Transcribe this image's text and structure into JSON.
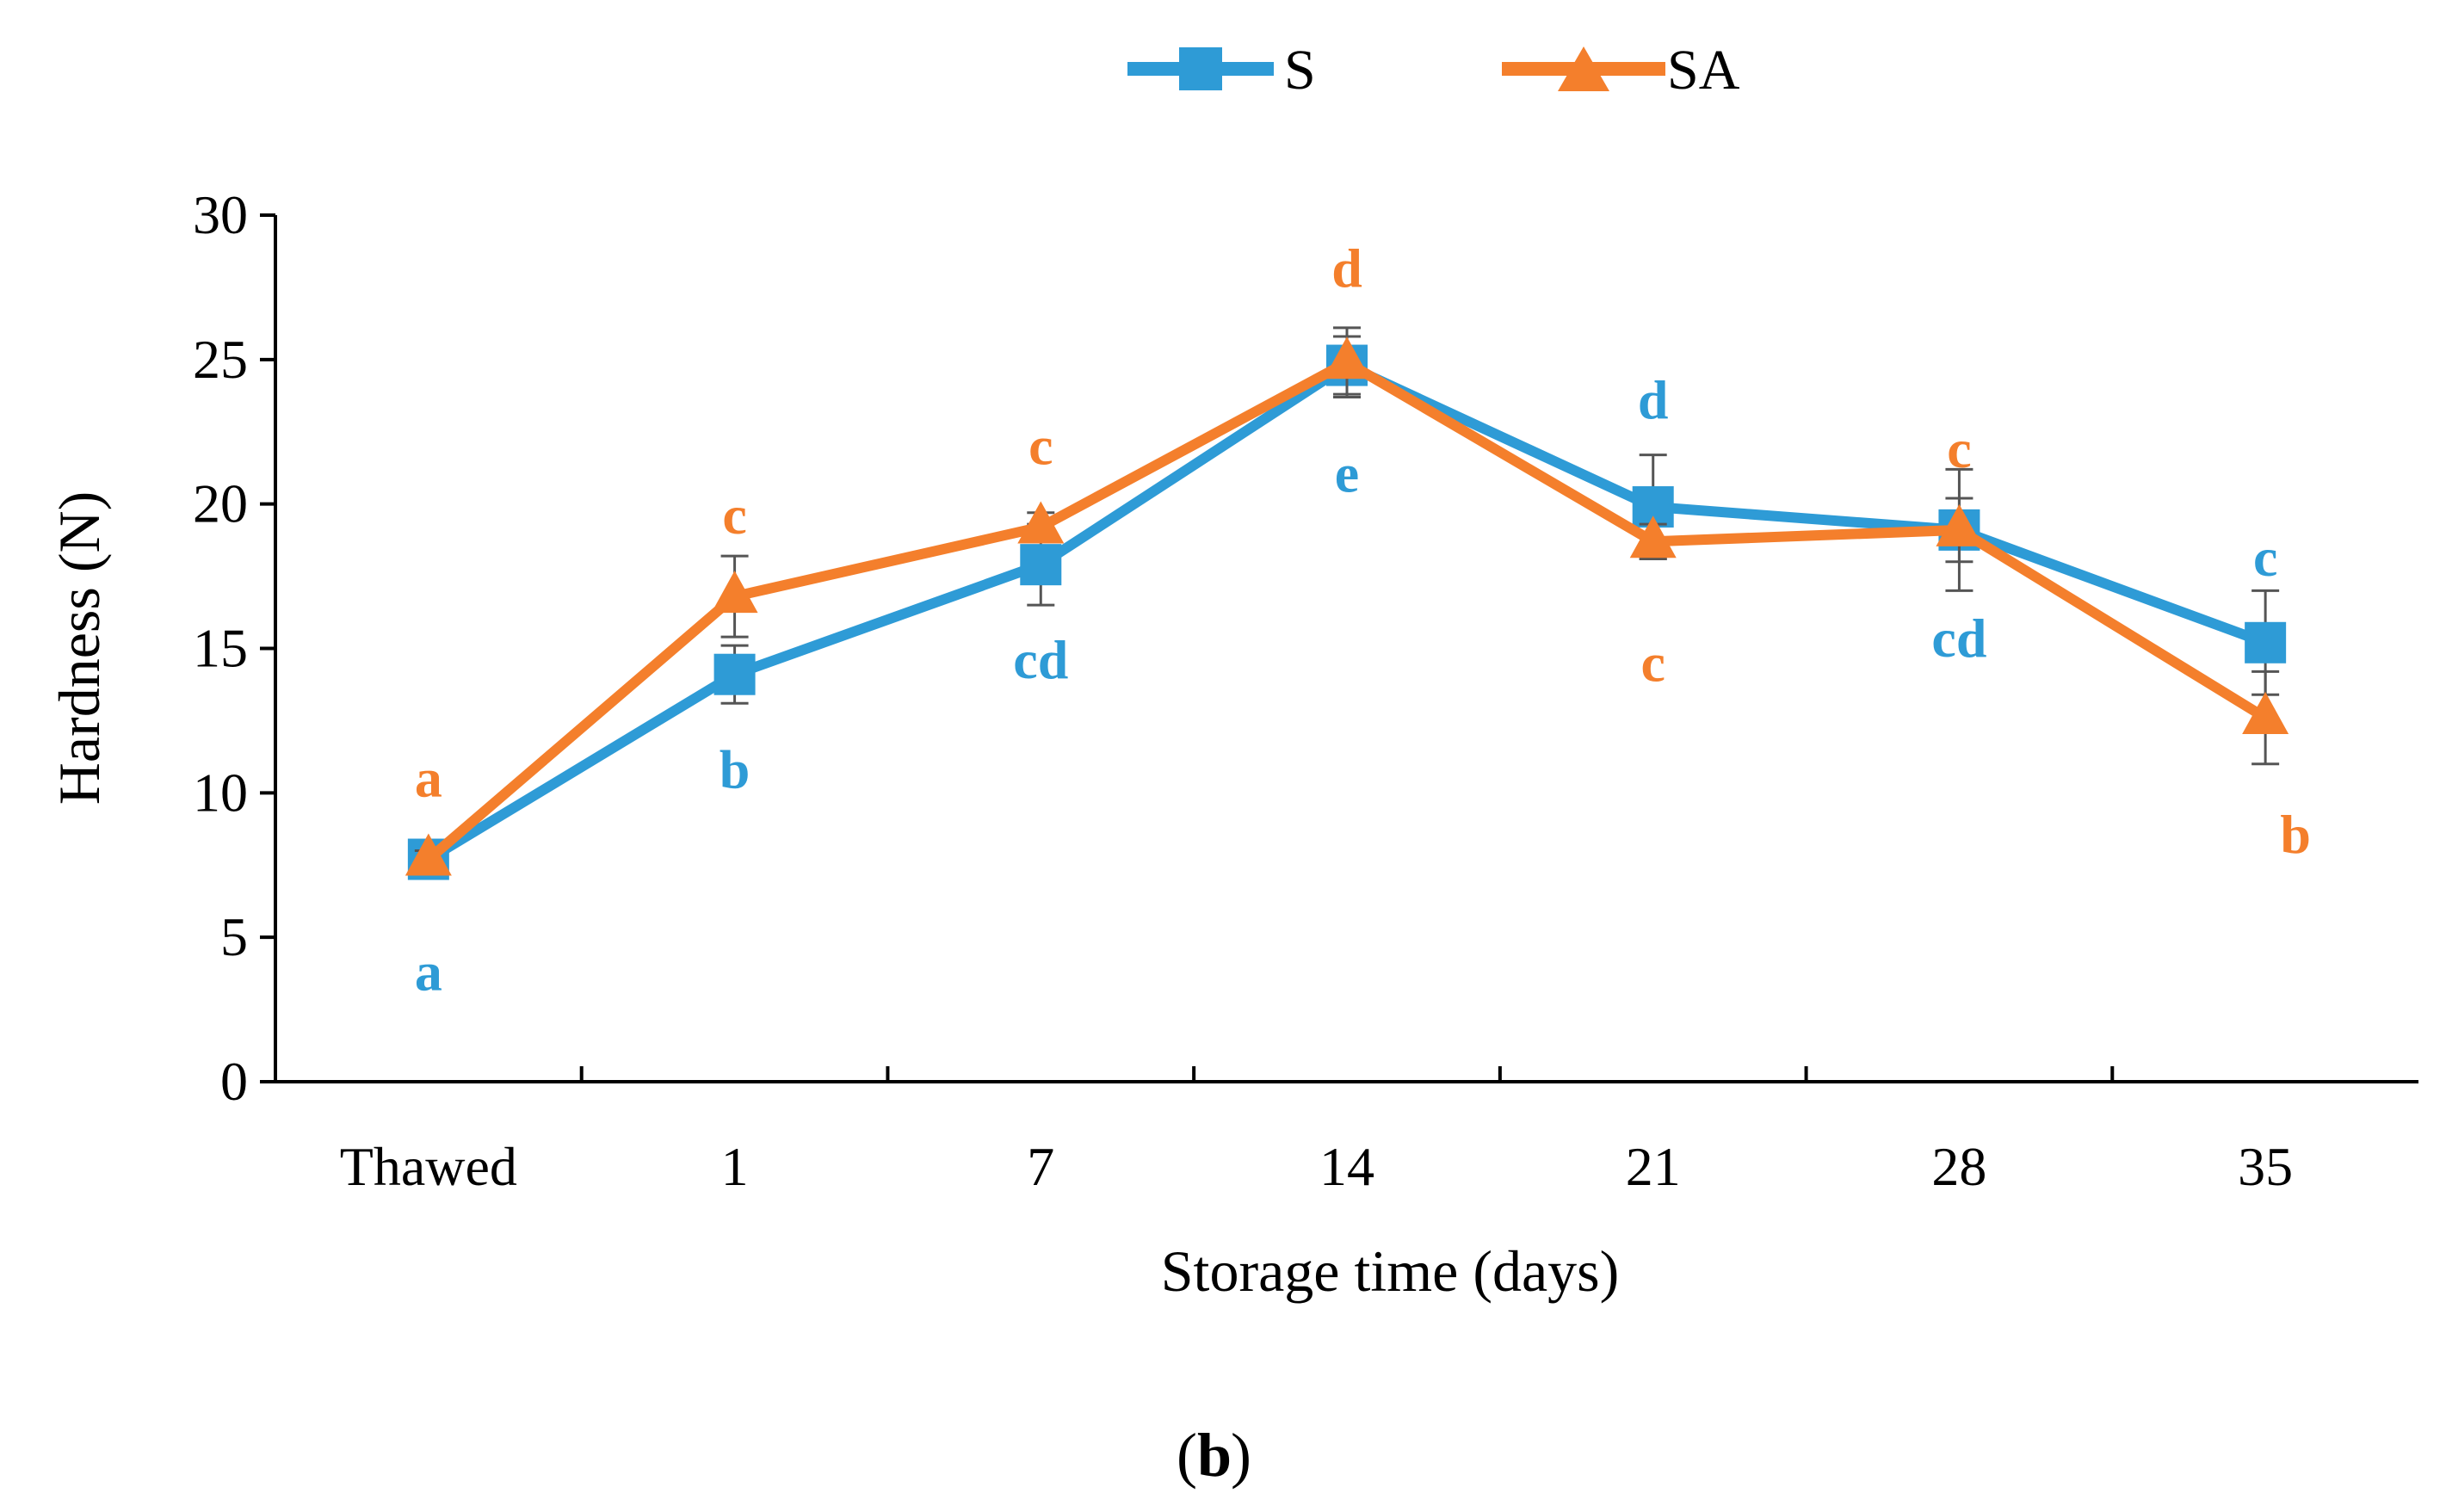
{
  "chart_data": {
    "type": "line",
    "panel_label": "b",
    "categories": [
      "Thawed",
      "1",
      "7",
      "14",
      "21",
      "28",
      "35"
    ],
    "xlabel": "Storage time (days)",
    "ylabel": "Hardness (N)",
    "ylim": [
      0,
      30
    ],
    "yticks": [
      0,
      5,
      10,
      15,
      20,
      25,
      30
    ],
    "grid": false,
    "legend_position": "top-center",
    "series": [
      {
        "name": "S",
        "color": "#2E9BD6",
        "marker": "square",
        "values": [
          7.7,
          14.1,
          17.9,
          24.8,
          19.9,
          19.1,
          15.2
        ],
        "errors": [
          0.3,
          1.0,
          1.4,
          1.0,
          1.8,
          2.1,
          1.8
        ],
        "letters": [
          "a",
          "b",
          "cd",
          "e",
          "d",
          "cd",
          "c"
        ]
      },
      {
        "name": "SA",
        "color": "#F47F2C",
        "marker": "triangle",
        "values": [
          7.7,
          16.8,
          19.2,
          24.9,
          18.7,
          19.1,
          12.6
        ],
        "errors": [
          0.3,
          1.4,
          0.5,
          1.2,
          0.6,
          1.1,
          1.6
        ],
        "letters": [
          "a",
          "c",
          "c",
          "d",
          "c",
          "c",
          "b"
        ]
      }
    ]
  }
}
